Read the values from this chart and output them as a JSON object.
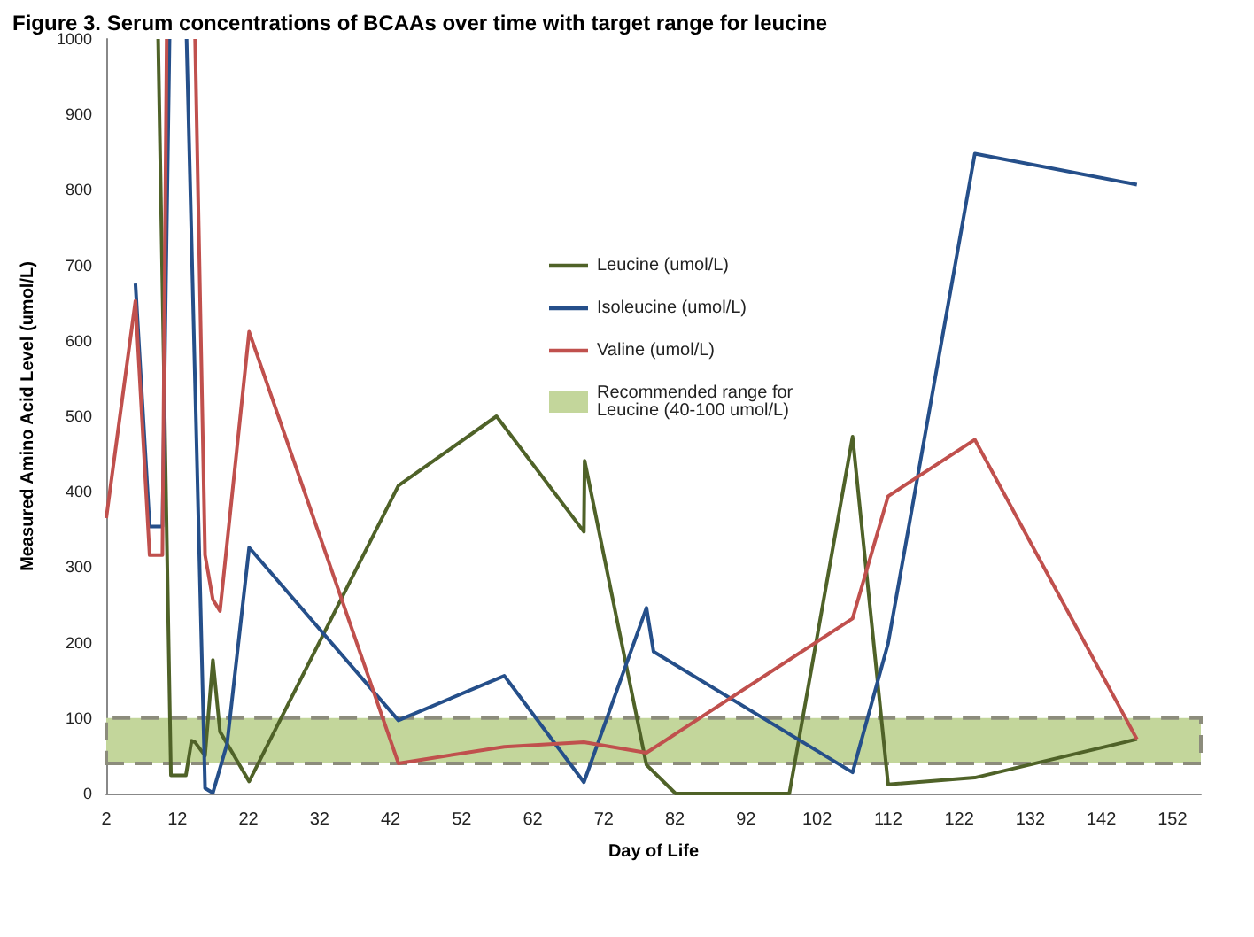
{
  "chart_data": {
    "type": "line",
    "title": "Figure 3. Serum concentrations of BCAAs over time with target range for leucine",
    "xlabel": "Day of Life",
    "ylabel": "Measured Amino Acid Level (umol/L)",
    "xlim": [
      2,
      156
    ],
    "xticks": [
      2,
      12,
      22,
      32,
      42,
      52,
      62,
      72,
      82,
      92,
      102,
      112,
      122,
      132,
      142,
      152
    ],
    "ylim": [
      0,
      1000
    ],
    "yticks": [
      0,
      100,
      200,
      300,
      400,
      500,
      600,
      700,
      800,
      900,
      1000
    ],
    "grid": false,
    "legend": "top right",
    "marker": "none",
    "line_style": "solid",
    "series": [
      {
        "name": "Leucine (umol/L)",
        "color": "#4f6228",
        "x": [
          9.3,
          11.1,
          13.2,
          14.0,
          14.5,
          15.9,
          17.0,
          18.0,
          19.0,
          22.1,
          43.1,
          56.9,
          69.2,
          69.3,
          78.0,
          82.1,
          98.1,
          107.0,
          112.0,
          124.2,
          147.0
        ],
        "values": [
          1000,
          24,
          24,
          70,
          68,
          50,
          177,
          82,
          66,
          16,
          408,
          500,
          347,
          441,
          38,
          0,
          0,
          473,
          12,
          21,
          72
        ]
      },
      {
        "name": "Isoleucine (umol/L)",
        "color": "#254f8a",
        "x": [
          6.1,
          8.1,
          9.9,
          10.9,
          12,
          13.3,
          15.9,
          17.0,
          19.0,
          22.1,
          43.1,
          58.0,
          69.2,
          78.0,
          79.0,
          107.0,
          112.0,
          124.2,
          147.0
        ],
        "values": [
          676,
          354,
          354,
          1000,
          null,
          1000,
          7,
          1,
          66,
          326,
          97,
          156,
          15,
          246,
          188,
          28,
          199,
          848,
          807
        ]
      },
      {
        "name": "Valine (umol/L)",
        "color": "#c0504d",
        "x": [
          2,
          6.1,
          8.1,
          9.9,
          10.5,
          12,
          14.5,
          15.9,
          17.0,
          18.0,
          22.1,
          43.1,
          58.0,
          69.2,
          78.0,
          107.0,
          112.0,
          124.2,
          147.0
        ],
        "values": [
          365,
          653,
          316,
          316,
          1000,
          null,
          1000,
          316,
          257,
          242,
          612,
          40,
          62,
          68,
          54,
          232,
          394,
          469,
          72
        ]
      }
    ],
    "bands": [
      {
        "axis": "y",
        "from": 40,
        "to": 100,
        "label": "Recommended range for Leucine (40-100 umol/L)",
        "color": "#c3d69b"
      }
    ]
  }
}
